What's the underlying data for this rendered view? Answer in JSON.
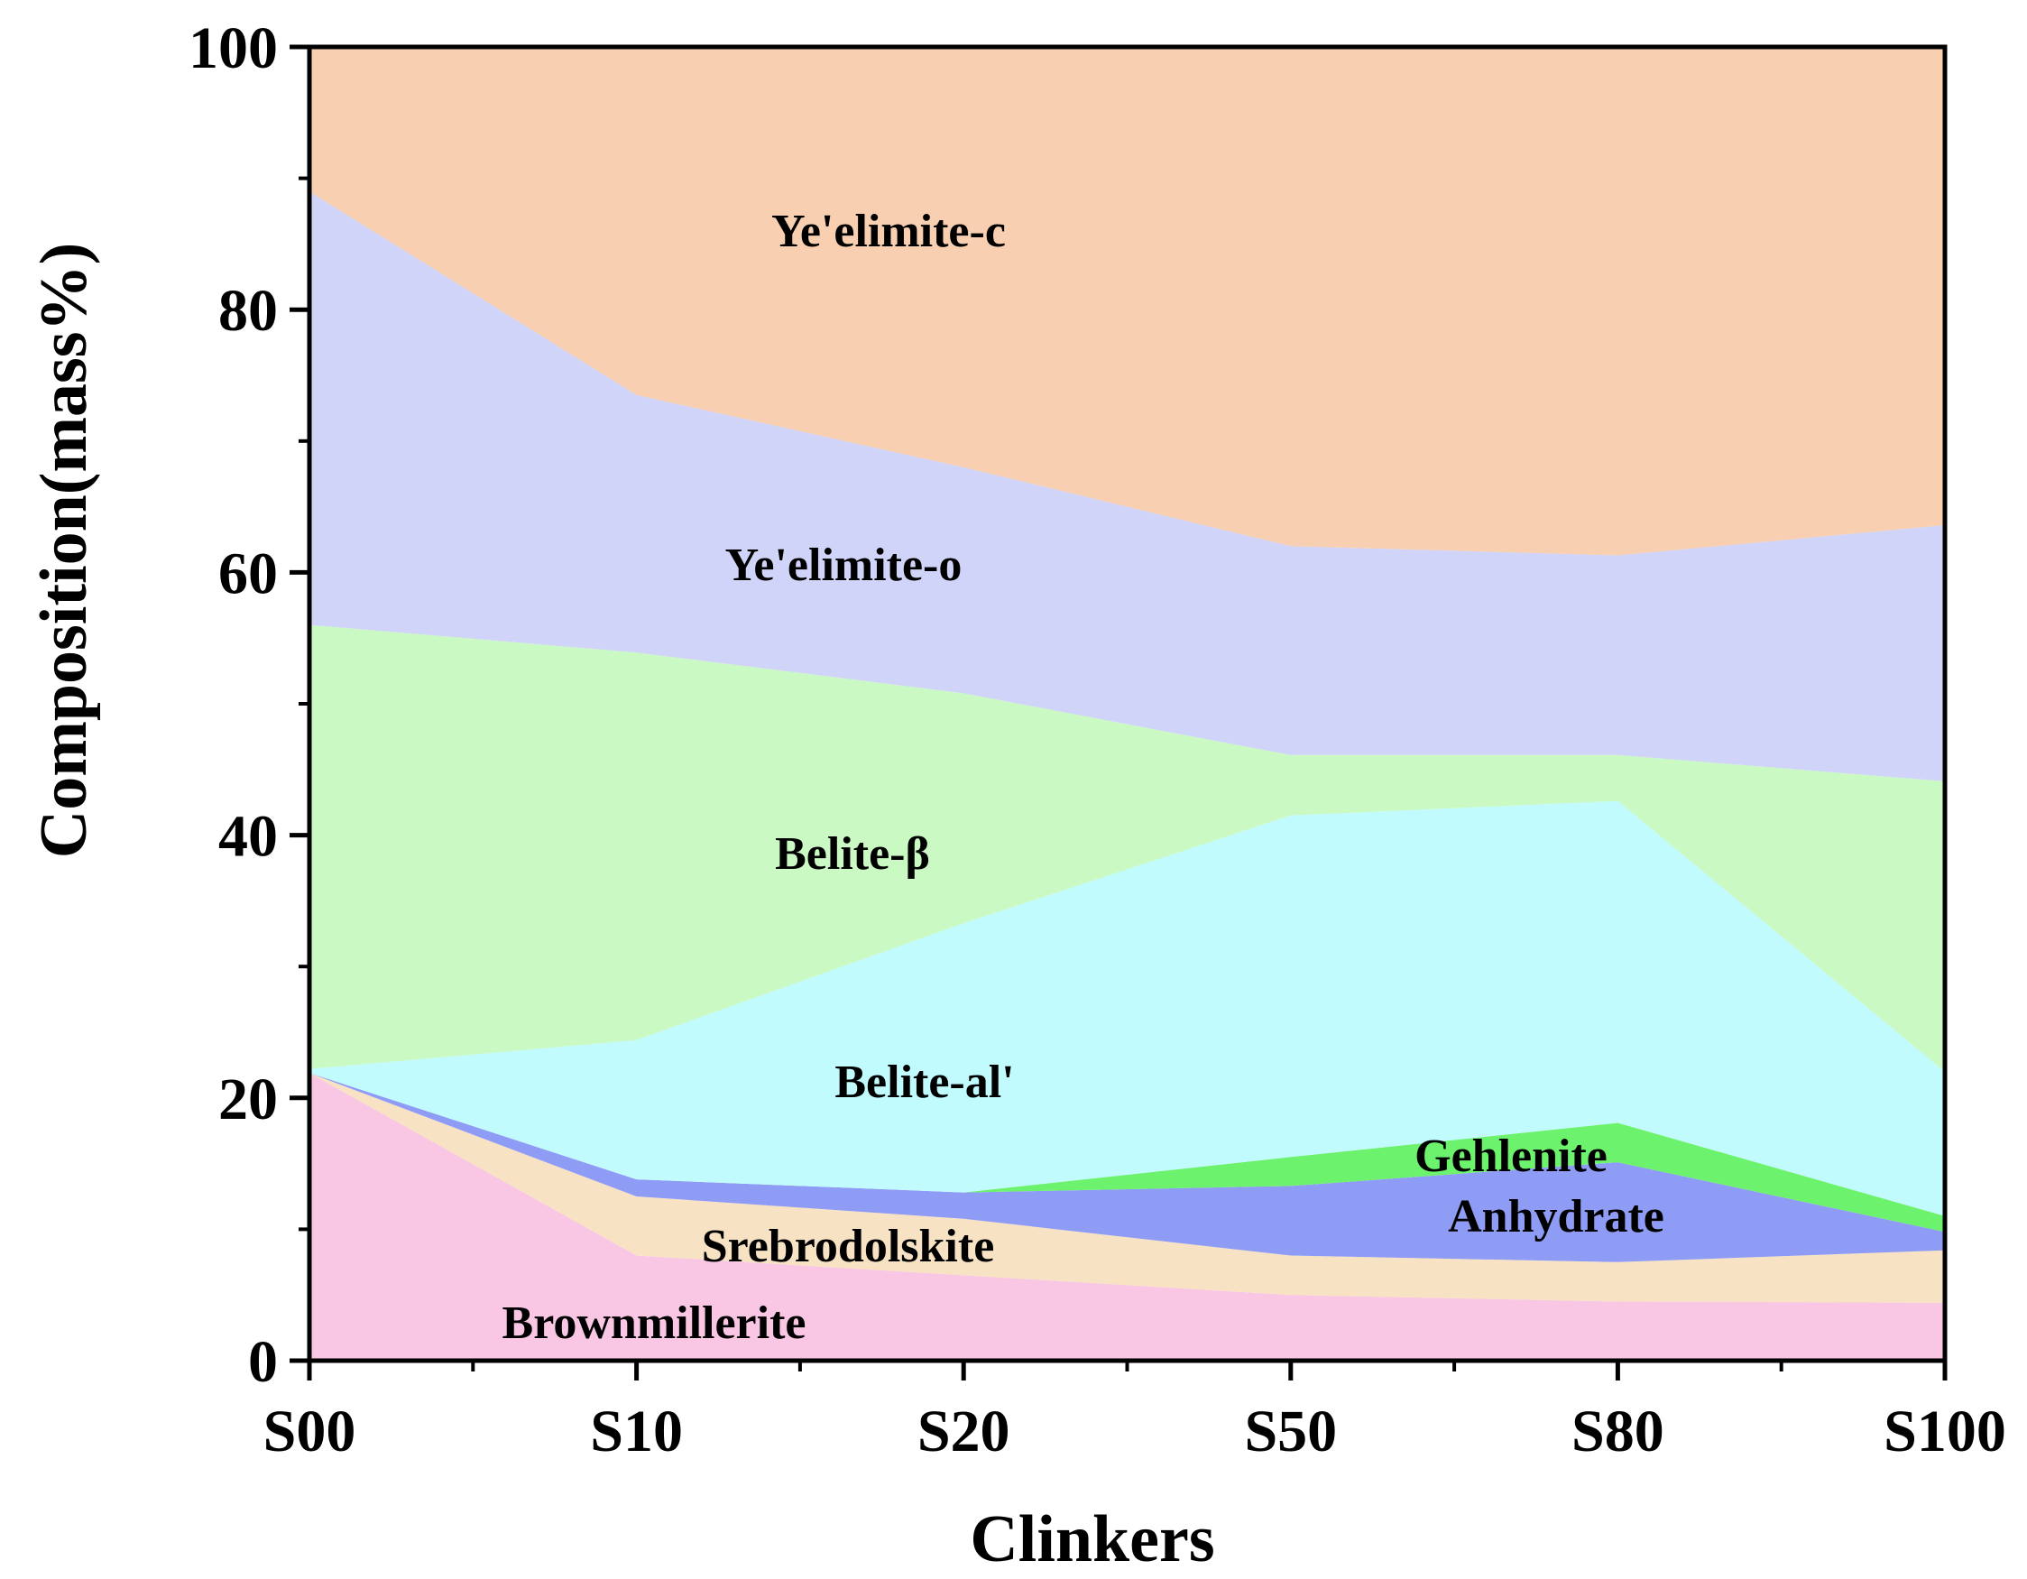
{
  "chart_data": {
    "type": "area",
    "stacked": true,
    "title": "",
    "xlabel": "Clinkers",
    "ylabel": "Composition(mass%)",
    "ylim": [
      0,
      100
    ],
    "yticks": [
      0,
      20,
      40,
      60,
      80,
      100
    ],
    "categories": [
      "S00",
      "S10",
      "S20",
      "S50",
      "S80",
      "S100"
    ],
    "series": [
      {
        "name": "Brownmillerite",
        "color": "#f9c6e3",
        "values": [
          21.9,
          8.0,
          6.5,
          5.0,
          4.5,
          4.4
        ]
      },
      {
        "name": "Srebrodolskite",
        "color": "#f7e2c4",
        "values": [
          0.0,
          4.5,
          4.3,
          3.0,
          3.0,
          4.0
        ]
      },
      {
        "name": "Anhydrate",
        "color": "#8e9cf6",
        "values": [
          0.0,
          1.3,
          2.0,
          5.3,
          7.6,
          1.4
        ]
      },
      {
        "name": "Gehlenite",
        "color": "#6cf26c",
        "values": [
          0.0,
          0.0,
          0.0,
          2.2,
          3.0,
          1.2
        ]
      },
      {
        "name": "Belite-al'",
        "color": "#c1fbfd",
        "values": [
          0.3,
          10.6,
          20.5,
          26.0,
          24.5,
          11.0
        ]
      },
      {
        "name": "Belite-β",
        "color": "#caf9c4",
        "values": [
          33.8,
          29.5,
          17.5,
          4.6,
          3.5,
          22.1
        ]
      },
      {
        "name": "Ye'elimite-o",
        "color": "#d0d4f9",
        "values": [
          33.0,
          19.6,
          17.2,
          15.9,
          15.2,
          19.5
        ]
      },
      {
        "name": "Ye'elimite-c",
        "color": "#f8cfb0",
        "values": [
          11.0,
          26.5,
          32.0,
          38.0,
          38.7,
          36.4
        ]
      }
    ]
  }
}
